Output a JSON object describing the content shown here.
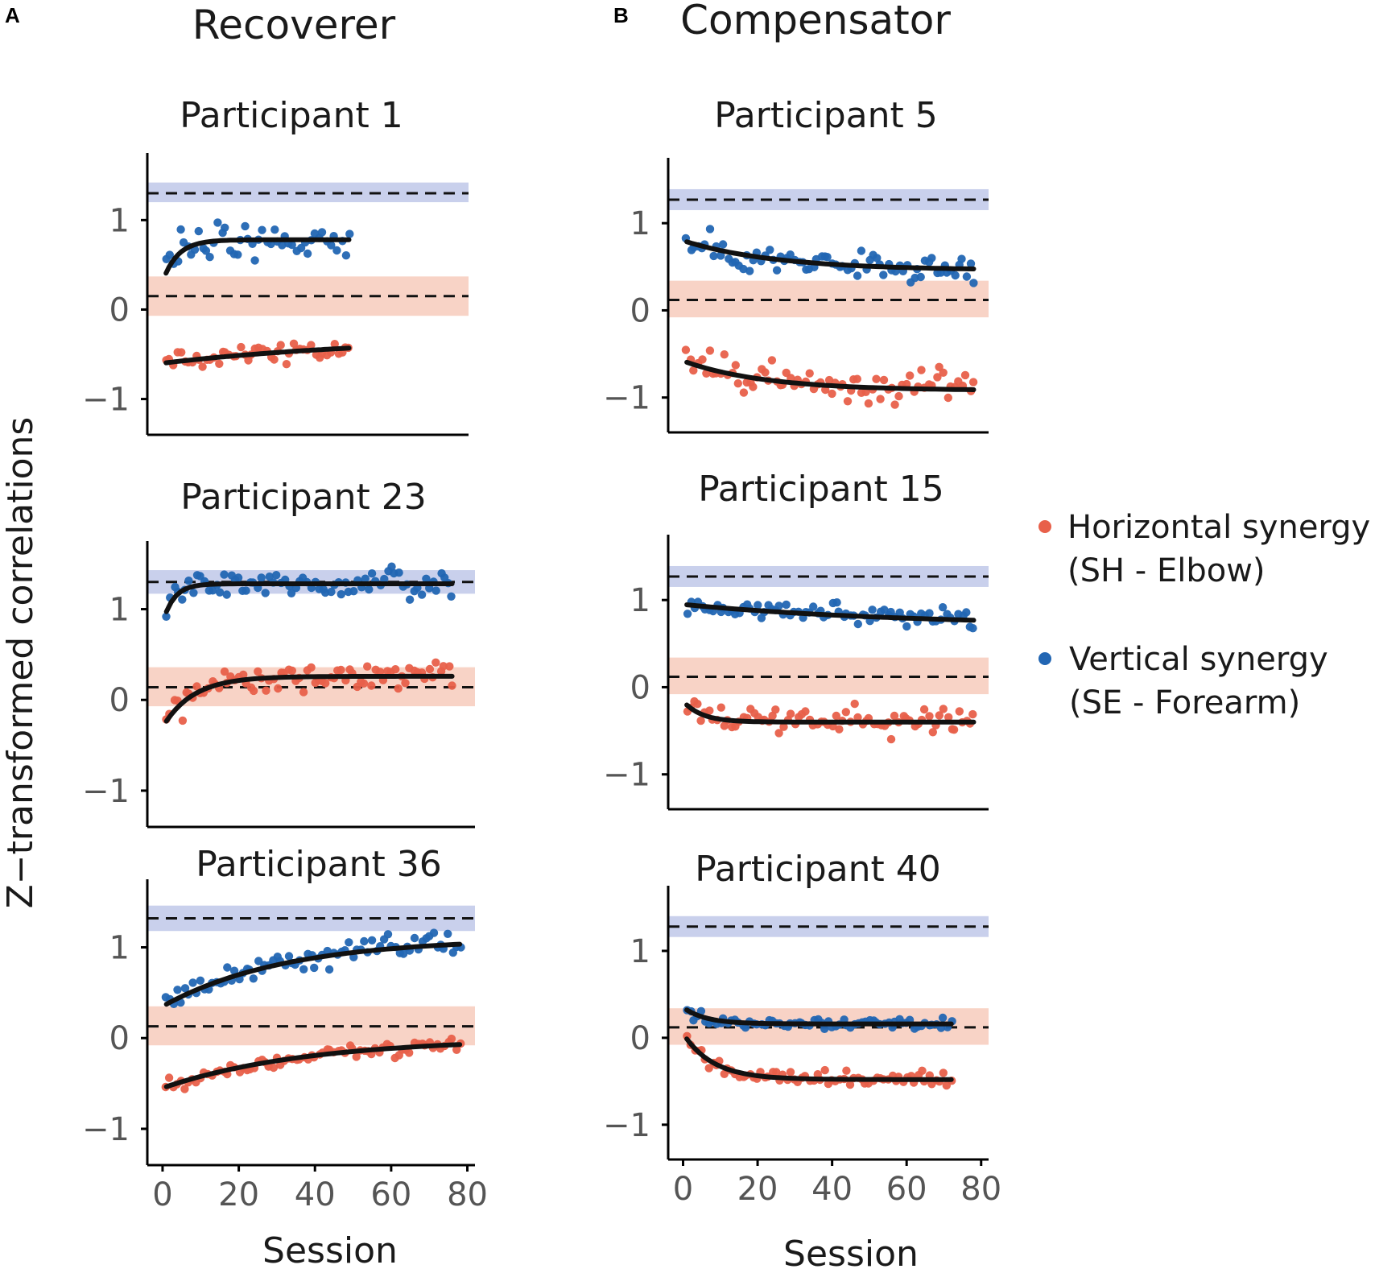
{
  "panel_labels": {
    "a": "A",
    "b": "B"
  },
  "column_titles": {
    "recoverer": "Recoverer",
    "compensator": "Compensator"
  },
  "y_axis_label": "Z−transformed correlations",
  "x_axis_label": "Session",
  "y_tick_labels": [
    "−1",
    "0",
    "1"
  ],
  "x_tick_labels": [
    "0",
    "20",
    "40",
    "60",
    "80"
  ],
  "legend": {
    "horizontal_line1": "Horizontal synergy",
    "horizontal_line2": "(SH - Elbow)",
    "vertical_line1": "Vertical synergy",
    "vertical_line2": "(SE - Forearm)"
  },
  "colors": {
    "horizontal": "#e8604a",
    "vertical": "#2266b3",
    "horizontal_band": "#f8d3c6",
    "vertical_band": "#c9d0ec",
    "fit": "#111111"
  },
  "chart_data": [
    {
      "type": "scatter",
      "id": "p1",
      "title": "Participant 1",
      "group": "Recoverer",
      "xlim": [
        -4,
        82
      ],
      "ylim": [
        -1.4,
        1.75
      ],
      "ref_vertical": 1.3,
      "band_vertical": [
        1.2,
        1.42
      ],
      "ref_horizontal": 0.15,
      "band_horizontal": [
        -0.07,
        0.37
      ],
      "sessions": 50,
      "horizontal": {
        "start": -0.6,
        "plateau": -0.3,
        "tau": 60,
        "noise": 0.1
      },
      "vertical": {
        "start": 0.3,
        "plateau": 0.78,
        "tau": 4,
        "noise": 0.17
      }
    },
    {
      "type": "scatter",
      "id": "p5",
      "title": "Participant 5",
      "group": "Compensator",
      "xlim": [
        -4,
        82
      ],
      "ylim": [
        -1.4,
        1.75
      ],
      "ref_vertical": 1.27,
      "band_vertical": [
        1.15,
        1.39
      ],
      "ref_horizontal": 0.12,
      "band_horizontal": [
        -0.08,
        0.34
      ],
      "sessions": 78,
      "horizontal": {
        "start": -0.58,
        "plateau": -0.92,
        "tau": 22,
        "noise": 0.18
      },
      "vertical": {
        "start": 0.8,
        "plateau": 0.46,
        "tau": 25,
        "noise": 0.15
      }
    },
    {
      "type": "scatter",
      "id": "p23",
      "title": "Participant 23",
      "group": "Recoverer",
      "xlim": [
        -4,
        82
      ],
      "ylim": [
        -1.4,
        1.75
      ],
      "ref_vertical": 1.3,
      "band_vertical": [
        1.17,
        1.43
      ],
      "ref_horizontal": 0.14,
      "band_horizontal": [
        -0.07,
        0.36
      ],
      "sessions": 76,
      "horizontal": {
        "start": -0.3,
        "plateau": 0.26,
        "tau": 8,
        "noise": 0.16
      },
      "vertical": {
        "start": 0.85,
        "plateau": 1.28,
        "tau": 3,
        "noise": 0.14
      }
    },
    {
      "type": "scatter",
      "id": "p15",
      "title": "Participant 15",
      "group": "Compensator",
      "xlim": [
        -4,
        82
      ],
      "ylim": [
        -1.4,
        1.75
      ],
      "ref_vertical": 1.27,
      "band_vertical": [
        1.15,
        1.39
      ],
      "ref_horizontal": 0.12,
      "band_horizontal": [
        -0.08,
        0.34
      ],
      "sessions": 78,
      "horizontal": {
        "start": -0.16,
        "plateau": -0.4,
        "tau": 5,
        "noise": 0.14
      },
      "vertical": {
        "start": 0.95,
        "plateau": 0.7,
        "tau": 60,
        "noise": 0.1
      }
    },
    {
      "type": "scatter",
      "id": "p36",
      "title": "Participant 36",
      "group": "Recoverer",
      "xlim": [
        -4,
        82
      ],
      "ylim": [
        -1.4,
        1.75
      ],
      "ref_vertical": 1.32,
      "band_vertical": [
        1.18,
        1.46
      ],
      "ref_horizontal": 0.13,
      "band_horizontal": [
        -0.08,
        0.35
      ],
      "sessions": 78,
      "horizontal": {
        "start": -0.55,
        "plateau": 0.0,
        "tau": 38,
        "noise": 0.08
      },
      "vertical": {
        "start": 0.35,
        "plateau": 1.1,
        "tau": 32,
        "noise": 0.13
      }
    },
    {
      "type": "scatter",
      "id": "p40",
      "title": "Participant 40",
      "group": "Compensator",
      "xlim": [
        -4,
        82
      ],
      "ylim": [
        -1.4,
        1.75
      ],
      "ref_vertical": 1.28,
      "band_vertical": [
        1.16,
        1.4
      ],
      "ref_horizontal": 0.12,
      "band_horizontal": [
        -0.08,
        0.34
      ],
      "sessions": 72,
      "horizontal": {
        "start": 0.05,
        "plateau": -0.48,
        "tau": 8,
        "noise": 0.07
      },
      "vertical": {
        "start": 0.35,
        "plateau": 0.16,
        "tau": 6,
        "noise": 0.05
      }
    }
  ]
}
